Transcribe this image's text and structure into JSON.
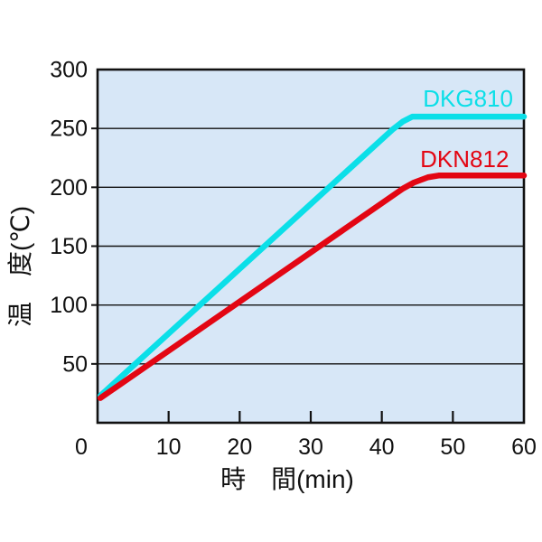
{
  "chart_data": {
    "type": "line",
    "title": "",
    "xlabel": "時　間(min)",
    "ylabel": "温　度(℃)",
    "xlim": [
      0,
      60
    ],
    "ylim": [
      0,
      300
    ],
    "x_ticks": [
      0,
      10,
      20,
      30,
      40,
      50,
      60
    ],
    "y_ticks": [
      0,
      50,
      100,
      150,
      200,
      250,
      300
    ],
    "grid": "horizontal-only",
    "legend_position": "inline-labels-above-lines",
    "plot_background_color": "#D7E7F7",
    "axis_color": "#111111",
    "series": [
      {
        "name": "DKG810",
        "color": "#0BDFE8",
        "points": [
          [
            0.4,
            23
          ],
          [
            41.5,
            249
          ],
          [
            43.0,
            256
          ],
          [
            44.3,
            260
          ],
          [
            60,
            260
          ]
        ],
        "plateau_temp": 260,
        "label_x": 45.8,
        "label_y": 268.5
      },
      {
        "name": "DKN812",
        "color": "#E30613",
        "points": [
          [
            0.4,
            21
          ],
          [
            43.0,
            199
          ],
          [
            44.5,
            204
          ],
          [
            46.5,
            208.5
          ],
          [
            48.0,
            210
          ],
          [
            60,
            210
          ]
        ],
        "plateau_temp": 210,
        "label_x": 45.4,
        "label_y": 217
      }
    ]
  }
}
